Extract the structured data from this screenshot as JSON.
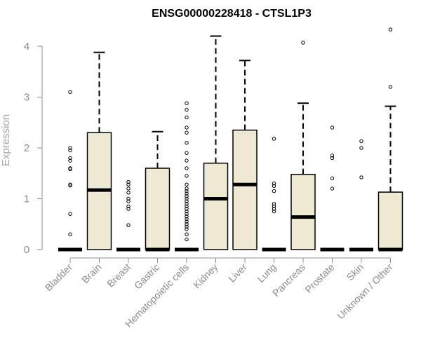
{
  "chart_data": {
    "type": "box",
    "title": "ENSG00000228418 - CTSL1P3",
    "xlabel": "",
    "ylabel": "Expression",
    "ylim": [
      0,
      4.4
    ],
    "yticks": [
      0,
      1,
      2,
      3,
      4
    ],
    "grid": false,
    "legend": "none",
    "box_fill": "#efe8d3",
    "categories": [
      "Bladder",
      "Brain",
      "Breast",
      "Gastric",
      "Hematopoietic cells",
      "Kidney",
      "Liver",
      "Lung",
      "Pancreas",
      "Prostate",
      "Skin",
      "Unknown / Other"
    ],
    "boxes": [
      {
        "category": "Bladder",
        "min": 0,
        "q1": 0,
        "median": 0,
        "q3": 0,
        "max": 0,
        "outliers": [
          3.1,
          2.0,
          1.95,
          1.8,
          1.75,
          1.6,
          1.58,
          1.28,
          1.26,
          0.7,
          0.3
        ]
      },
      {
        "category": "Brain",
        "min": 0,
        "q1": 0,
        "median": 1.17,
        "q3": 2.3,
        "max": 3.88,
        "outliers": []
      },
      {
        "category": "Breast",
        "min": 0,
        "q1": 0,
        "median": 0,
        "q3": 0,
        "max": 0,
        "outliers": [
          1.33,
          1.28,
          1.2,
          1.12,
          1.0,
          0.95,
          0.85,
          0.8,
          0.48
        ]
      },
      {
        "category": "Gastric",
        "min": 0,
        "q1": 0,
        "median": 0,
        "q3": 1.6,
        "max": 2.32,
        "outliers": []
      },
      {
        "category": "Hematopoietic cells",
        "min": 0,
        "q1": 0,
        "median": 0,
        "q3": 0,
        "max": 0,
        "outliers": [
          2.88,
          2.75,
          2.6,
          2.4,
          2.3,
          2.1,
          1.9,
          1.75,
          1.6,
          1.45,
          1.28,
          1.2,
          1.15,
          1.1,
          1.05,
          1.0,
          0.95,
          0.9,
          0.85,
          0.8,
          0.75,
          0.7,
          0.65,
          0.6,
          0.55,
          0.5,
          0.45,
          0.4,
          0.3,
          0.2
        ]
      },
      {
        "category": "Kidney",
        "min": 0,
        "q1": 0,
        "median": 1.0,
        "q3": 1.7,
        "max": 4.2,
        "outliers": []
      },
      {
        "category": "Liver",
        "min": 0,
        "q1": 0,
        "median": 1.28,
        "q3": 2.35,
        "max": 3.72,
        "outliers": []
      },
      {
        "category": "Lung",
        "min": 0,
        "q1": 0,
        "median": 0,
        "q3": 0,
        "max": 0,
        "outliers": [
          2.18,
          1.3,
          1.25,
          1.15,
          0.9,
          0.85,
          0.8,
          0.75
        ]
      },
      {
        "category": "Pancreas",
        "min": 0,
        "q1": 0,
        "median": 0.64,
        "q3": 1.48,
        "max": 2.88,
        "outliers": [
          4.07
        ]
      },
      {
        "category": "Prostate",
        "min": 0,
        "q1": 0,
        "median": 0,
        "q3": 0,
        "max": 0,
        "outliers": [
          2.4,
          1.85,
          1.8,
          1.4,
          1.2
        ]
      },
      {
        "category": "Skin",
        "min": 0,
        "q1": 0,
        "median": 0,
        "q3": 0,
        "max": 0,
        "outliers": [
          2.13,
          2.0,
          1.42
        ]
      },
      {
        "category": "Unknown / Other",
        "min": 0,
        "q1": 0,
        "median": 0,
        "q3": 1.13,
        "max": 2.82,
        "outliers": [
          4.33,
          3.2
        ]
      }
    ]
  }
}
